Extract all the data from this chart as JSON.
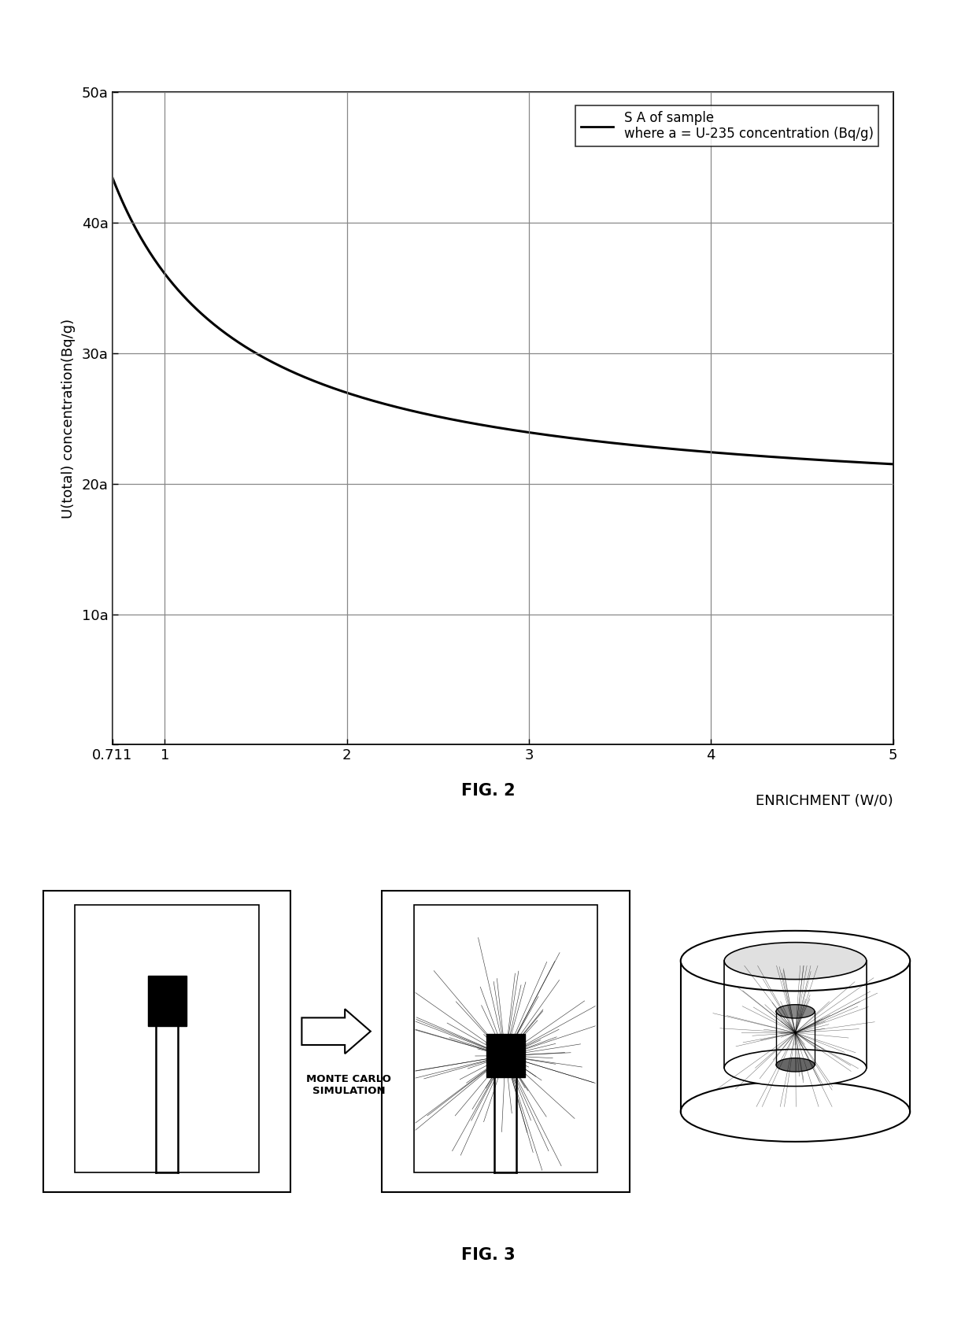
{
  "fig2": {
    "xlabel": "ENRICHMENT (W/0)",
    "ylabel": "U(total) concentration(Bq/g)",
    "xlim": [
      0.711,
      5.0
    ],
    "ylim": [
      0,
      50
    ],
    "yticks": [
      0,
      10,
      20,
      30,
      40,
      50
    ],
    "ytick_labels": [
      "",
      "10a",
      "20a",
      "30a",
      "40a",
      "50a"
    ],
    "xticks": [
      0.711,
      1,
      2,
      3,
      4,
      5
    ],
    "xtick_labels": [
      "0.711",
      "1",
      "2",
      "3",
      "4",
      "5"
    ],
    "legend_line1": "S A of sample",
    "legend_line2": "where a = U-235 concentration (Bq/g)",
    "curve_color": "#000000",
    "grid_color": "#888888",
    "background_color": "#ffffff",
    "curve_A": 18.23,
    "curve_B": 17.854
  },
  "fig2_caption": "FIG. 2",
  "fig3_caption": "FIG. 3",
  "monte_carlo_text": "MONTE CARLO\nSIMULATION"
}
